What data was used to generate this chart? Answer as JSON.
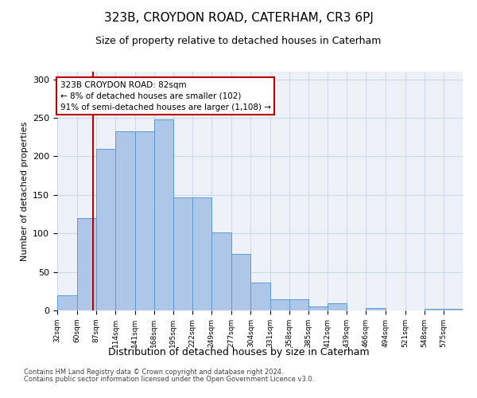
{
  "title1": "323B, CROYDON ROAD, CATERHAM, CR3 6PJ",
  "title2": "Size of property relative to detached houses in Caterham",
  "xlabel": "Distribution of detached houses by size in Caterham",
  "ylabel": "Number of detached properties",
  "bins": [
    32,
    60,
    87,
    114,
    141,
    168,
    195,
    222,
    249,
    277,
    304,
    331,
    358,
    385,
    412,
    439,
    466,
    494,
    521,
    548,
    575
  ],
  "heights": [
    20,
    120,
    210,
    233,
    233,
    248,
    147,
    147,
    101,
    73,
    36,
    14,
    14,
    5,
    9,
    0,
    3,
    0,
    0,
    2,
    2
  ],
  "bar_color": "#aec6e8",
  "bar_edge_color": "#5b9bd5",
  "property_value": 82,
  "vline_color": "#c00000",
  "annotation_text": "323B CROYDON ROAD: 82sqm\n← 8% of detached houses are smaller (102)\n91% of semi-detached houses are larger (1,108) →",
  "annotation_box_color": "#ffffff",
  "annotation_box_edge": "#c00000",
  "ylim": [
    0,
    310
  ],
  "yticks": [
    0,
    50,
    100,
    150,
    200,
    250,
    300
  ],
  "footnote1": "Contains HM Land Registry data © Crown copyright and database right 2024.",
  "footnote2": "Contains public sector information licensed under the Open Government Licence v3.0.",
  "grid_color": "#d0d8e8",
  "background_color": "#eef2f8",
  "title1_fontsize": 11,
  "title2_fontsize": 9,
  "annotation_fontsize": 7.5
}
